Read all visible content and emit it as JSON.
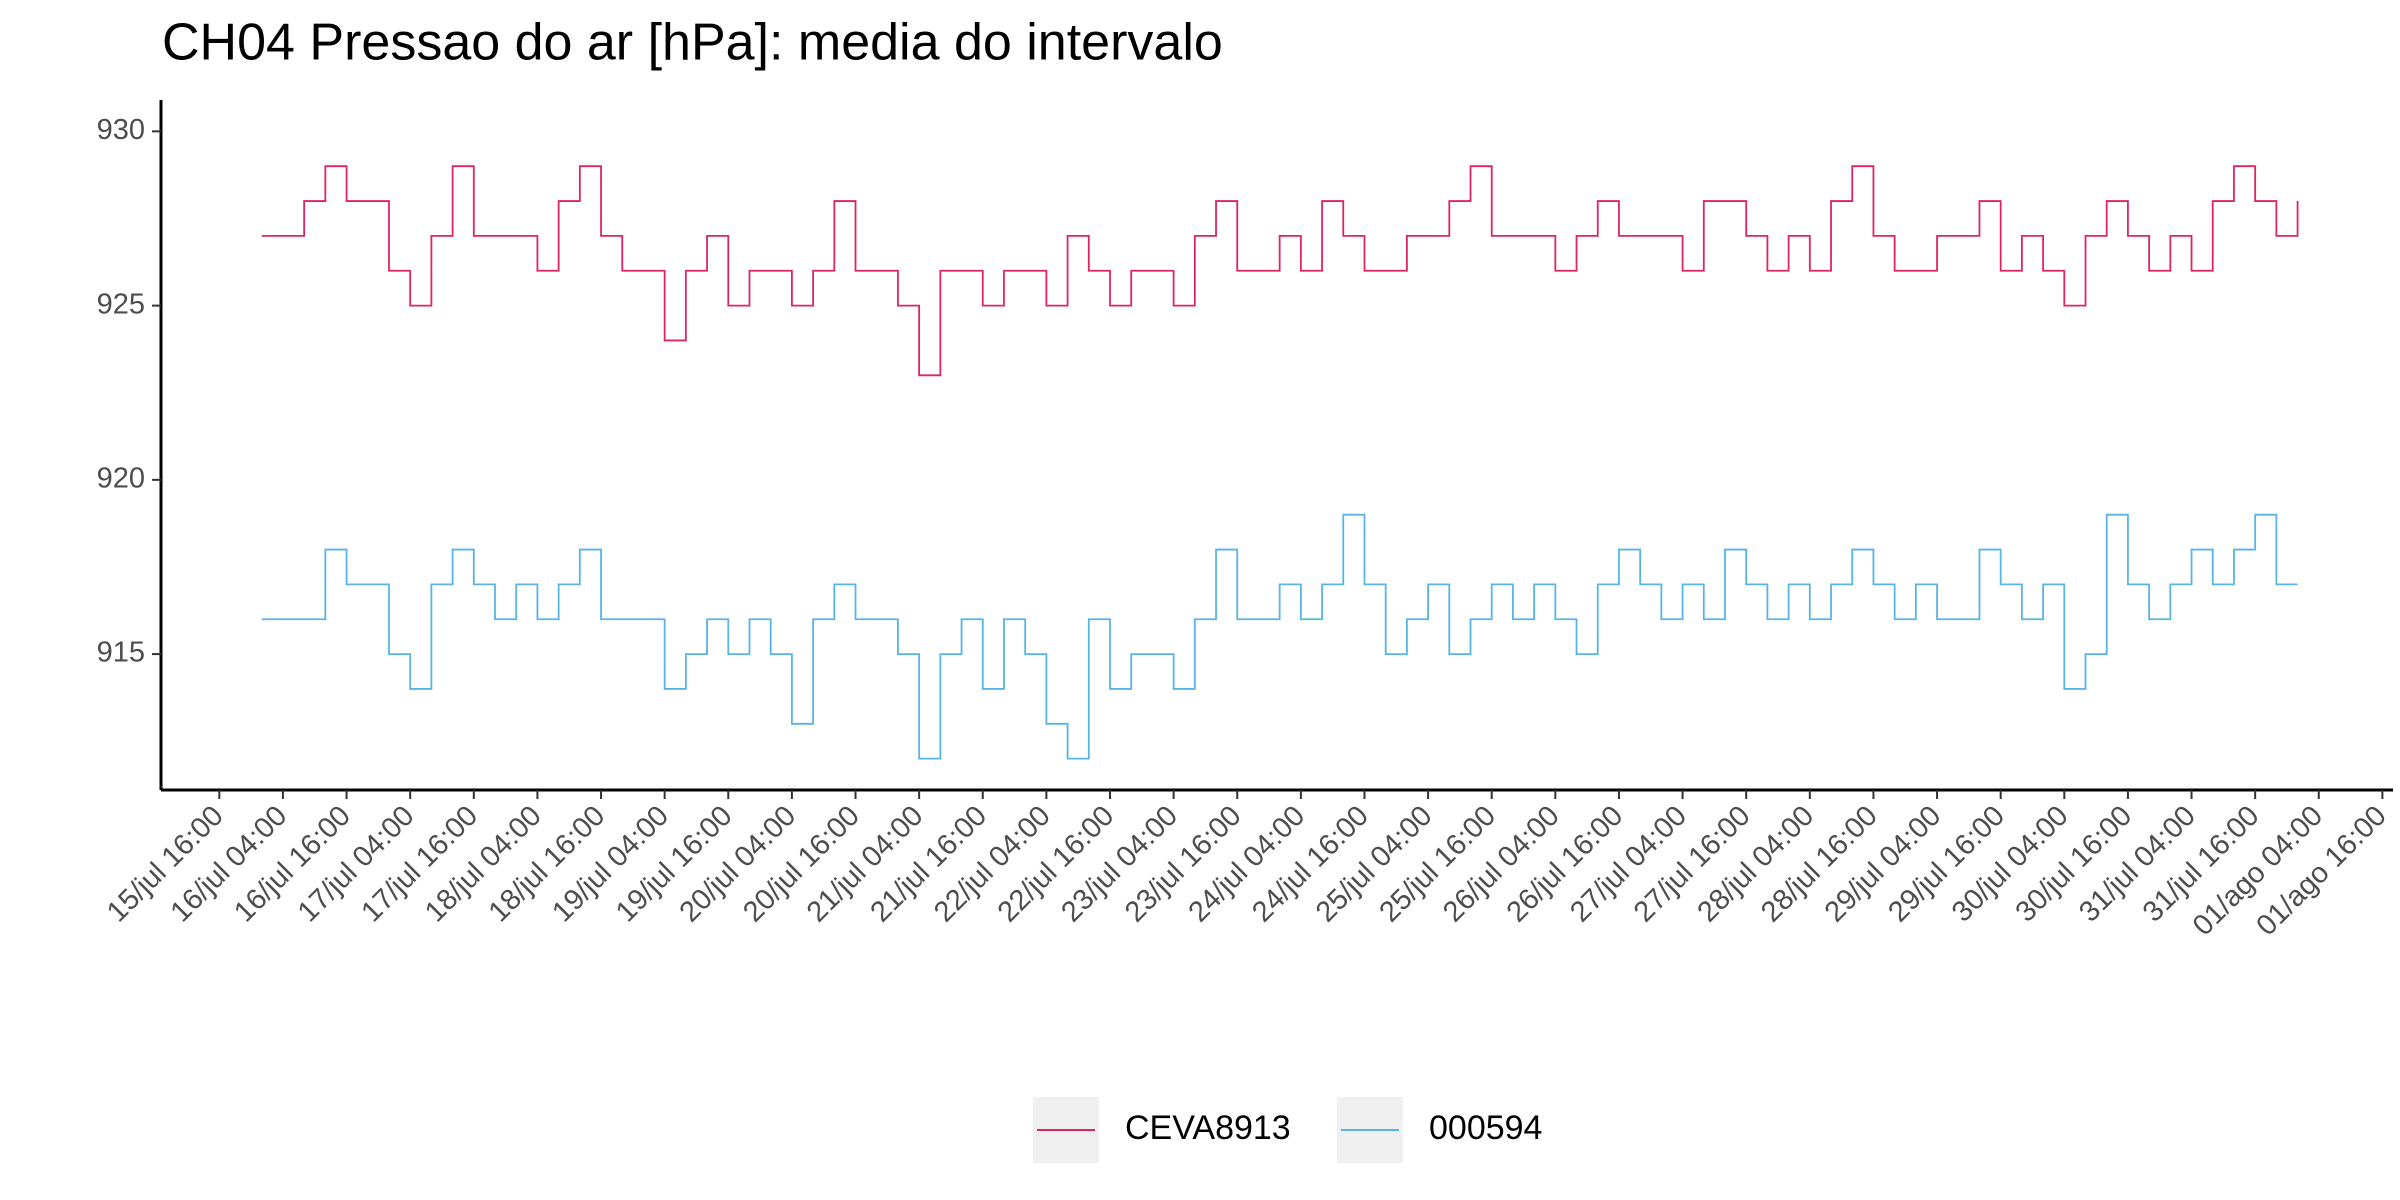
{
  "chart_data": {
    "type": "line",
    "step": "post",
    "title": "CH04 Pressao do ar [hPa]: media do intervalo",
    "x": [
      "16/jul 00:00",
      "16/jul 04:00",
      "16/jul 08:00",
      "16/jul 12:00",
      "16/jul 16:00",
      "16/jul 20:00",
      "17/jul 00:00",
      "17/jul 04:00",
      "17/jul 08:00",
      "17/jul 12:00",
      "17/jul 16:00",
      "17/jul 20:00",
      "18/jul 00:00",
      "18/jul 04:00",
      "18/jul 08:00",
      "18/jul 12:00",
      "18/jul 16:00",
      "18/jul 20:00",
      "19/jul 00:00",
      "19/jul 04:00",
      "19/jul 08:00",
      "19/jul 12:00",
      "19/jul 16:00",
      "19/jul 20:00",
      "20/jul 00:00",
      "20/jul 04:00",
      "20/jul 08:00",
      "20/jul 12:00",
      "20/jul 16:00",
      "20/jul 20:00",
      "21/jul 00:00",
      "21/jul 04:00",
      "21/jul 08:00",
      "21/jul 12:00",
      "21/jul 16:00",
      "21/jul 20:00",
      "22/jul 00:00",
      "22/jul 04:00",
      "22/jul 08:00",
      "22/jul 12:00",
      "22/jul 16:00",
      "22/jul 20:00",
      "23/jul 00:00",
      "23/jul 04:00",
      "23/jul 08:00",
      "23/jul 12:00",
      "23/jul 16:00",
      "23/jul 20:00",
      "24/jul 00:00",
      "24/jul 04:00",
      "24/jul 08:00",
      "24/jul 12:00",
      "24/jul 16:00",
      "24/jul 20:00",
      "25/jul 00:00",
      "25/jul 04:00",
      "25/jul 08:00",
      "25/jul 12:00",
      "25/jul 16:00",
      "25/jul 20:00",
      "26/jul 00:00",
      "26/jul 04:00",
      "26/jul 08:00",
      "26/jul 12:00",
      "26/jul 16:00",
      "26/jul 20:00",
      "27/jul 00:00",
      "27/jul 04:00",
      "27/jul 08:00",
      "27/jul 12:00",
      "27/jul 16:00",
      "27/jul 20:00",
      "28/jul 00:00",
      "28/jul 04:00",
      "28/jul 08:00",
      "28/jul 12:00",
      "28/jul 16:00",
      "28/jul 20:00",
      "29/jul 00:00",
      "29/jul 04:00",
      "29/jul 08:00",
      "29/jul 12:00",
      "29/jul 16:00",
      "29/jul 20:00",
      "30/jul 00:00",
      "30/jul 04:00",
      "30/jul 08:00",
      "30/jul 12:00",
      "30/jul 16:00",
      "30/jul 20:00",
      "31/jul 00:00",
      "31/jul 04:00",
      "31/jul 08:00",
      "31/jul 12:00",
      "31/jul 16:00",
      "31/jul 20:00",
      "01/ago 00:00"
    ],
    "series": [
      {
        "name": "CEVA8913",
        "color": "#e0245e",
        "values": [
          927,
          927,
          928,
          929,
          928,
          928,
          926,
          925,
          927,
          929,
          927,
          927,
          927,
          926,
          928,
          929,
          927,
          926,
          926,
          924,
          926,
          927,
          925,
          926,
          926,
          925,
          926,
          928,
          926,
          926,
          925,
          923,
          926,
          926,
          925,
          926,
          926,
          925,
          927,
          926,
          925,
          926,
          926,
          925,
          927,
          928,
          926,
          926,
          927,
          926,
          928,
          927,
          926,
          926,
          927,
          927,
          928,
          929,
          927,
          927,
          927,
          926,
          927,
          928,
          927,
          927,
          927,
          926,
          928,
          928,
          927,
          926,
          927,
          926,
          928,
          929,
          927,
          926,
          926,
          927,
          927,
          928,
          926,
          927,
          926,
          925,
          927,
          928,
          927,
          926,
          927,
          926,
          928,
          929,
          928,
          927,
          928
        ]
      },
      {
        "name": "000594",
        "color": "#56b4e9",
        "values": [
          916,
          916,
          916,
          918,
          917,
          917,
          915,
          914,
          917,
          918,
          917,
          916,
          917,
          916,
          917,
          918,
          916,
          916,
          916,
          914,
          915,
          916,
          915,
          916,
          915,
          913,
          916,
          917,
          916,
          916,
          915,
          912,
          915,
          916,
          914,
          916,
          915,
          913,
          912,
          916,
          914,
          915,
          915,
          914,
          916,
          918,
          916,
          916,
          917,
          916,
          917,
          919,
          917,
          915,
          916,
          917,
          915,
          916,
          917,
          916,
          917,
          916,
          915,
          917,
          918,
          917,
          916,
          917,
          916,
          918,
          917,
          916,
          917,
          916,
          917,
          918,
          917,
          916,
          917,
          916,
          916,
          918,
          917,
          916,
          917,
          914,
          915,
          919,
          917,
          916,
          917,
          918,
          917,
          918,
          919,
          917,
          917
        ]
      }
    ],
    "xlim": [
      "15/jul 05:00",
      "01/ago 18:00"
    ],
    "xticks": [
      "15/jul 16:00",
      "16/jul 04:00",
      "16/jul 16:00",
      "17/jul 04:00",
      "17/jul 16:00",
      "18/jul 04:00",
      "18/jul 16:00",
      "19/jul 04:00",
      "19/jul 16:00",
      "20/jul 04:00",
      "20/jul 16:00",
      "21/jul 04:00",
      "21/jul 16:00",
      "22/jul 04:00",
      "22/jul 16:00",
      "23/jul 04:00",
      "23/jul 16:00",
      "24/jul 04:00",
      "24/jul 16:00",
      "25/jul 04:00",
      "25/jul 16:00",
      "26/jul 04:00",
      "26/jul 16:00",
      "27/jul 04:00",
      "27/jul 16:00",
      "28/jul 04:00",
      "28/jul 16:00",
      "29/jul 04:00",
      "29/jul 16:00",
      "30/jul 04:00",
      "30/jul 16:00",
      "31/jul 04:00",
      "31/jul 16:00",
      "01/ago 04:00",
      "01/ago 16:00"
    ],
    "ylim": [
      911.1,
      930.9
    ],
    "yticks": [
      915,
      920,
      925,
      930
    ],
    "grid": false,
    "legend": "bottom"
  }
}
